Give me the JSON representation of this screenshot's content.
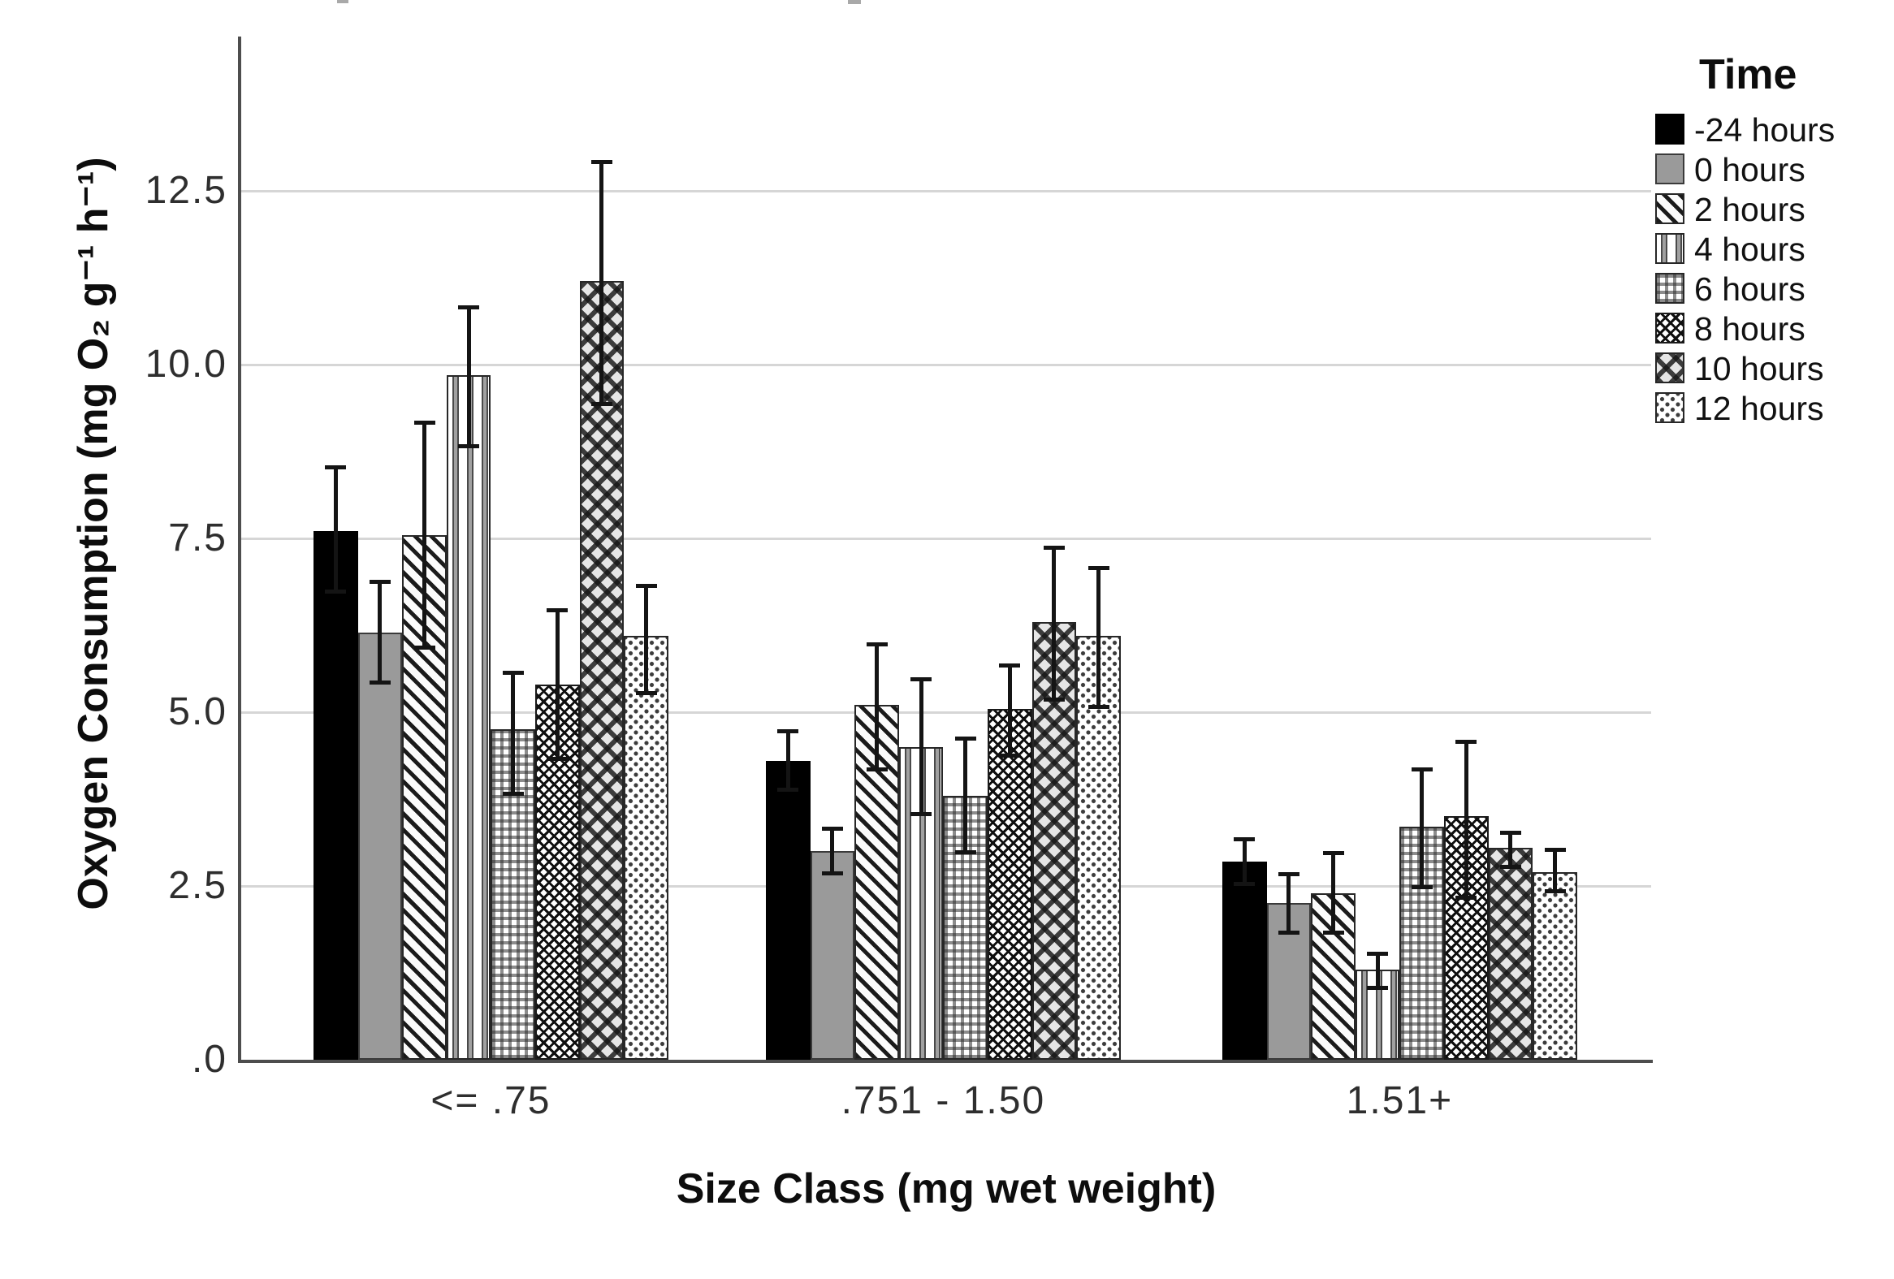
{
  "figure": {
    "background": "#ffffff"
  },
  "chart_data": {
    "type": "bar",
    "title": "",
    "xlabel": "Size Class (mg wet weight)",
    "ylabel": "Oxygen Consumption (mg O₂ g⁻¹ h⁻¹)",
    "categories": [
      "<= .75",
      ".751 - 1.50",
      "1.51+"
    ],
    "ylim": [
      0,
      14.72
    ],
    "grid": "horizontal light-gray lines at labeled ticks only",
    "y_ticks": [
      {
        "value": 12.5,
        "label": "12.5"
      },
      {
        "value": 10.0,
        "label": "10.0"
      },
      {
        "value": 7.5,
        "label": "7.5"
      },
      {
        "value": 5.0,
        "label": "5.0"
      },
      {
        "value": 2.5,
        "label": "2.5"
      },
      {
        "value": 0,
        "label": ".0"
      }
    ],
    "legend": {
      "title": "Time",
      "position": "top-right outside plot"
    },
    "error_bars": "black whiskers with end caps overlaid on bar centers",
    "series": [
      {
        "name": "-24 hours",
        "pattern": "solid-black",
        "values": [
          7.6,
          4.3,
          2.85
        ],
        "err_low": [
          6.7,
          3.85,
          2.5
        ],
        "err_high": [
          8.55,
          4.75,
          3.2
        ]
      },
      {
        "name": "0 hours",
        "pattern": "solid-gray",
        "values": [
          6.15,
          3.0,
          2.25
        ],
        "err_low": [
          5.4,
          2.65,
          1.8
        ],
        "err_high": [
          6.9,
          3.35,
          2.7
        ]
      },
      {
        "name": "2 hours",
        "pattern": "diagonal-stripes",
        "values": [
          7.55,
          5.1,
          2.4
        ],
        "err_low": [
          5.9,
          4.15,
          1.8
        ],
        "err_high": [
          9.2,
          6.0,
          3.0
        ]
      },
      {
        "name": "4 hours",
        "pattern": "vertical-stripes",
        "values": [
          9.85,
          4.5,
          1.3
        ],
        "err_low": [
          8.8,
          3.5,
          1.0
        ],
        "err_high": [
          10.85,
          5.5,
          1.55
        ]
      },
      {
        "name": "6 hours",
        "pattern": "grid-check",
        "values": [
          4.75,
          3.8,
          3.35
        ],
        "err_low": [
          3.8,
          2.95,
          2.45
        ],
        "err_high": [
          5.6,
          4.65,
          4.2
        ]
      },
      {
        "name": "8 hours",
        "pattern": "diamond-crosshatch",
        "values": [
          5.4,
          5.05,
          3.5
        ],
        "err_low": [
          4.3,
          4.35,
          2.3
        ],
        "err_high": [
          6.5,
          5.7,
          4.6
        ]
      },
      {
        "name": "10 hours",
        "pattern": "plus-lattice",
        "values": [
          11.2,
          6.3,
          3.05
        ],
        "err_low": [
          9.4,
          5.15,
          2.75
        ],
        "err_high": [
          12.95,
          7.4,
          3.3
        ]
      },
      {
        "name": "12 hours",
        "pattern": "dotted",
        "values": [
          6.1,
          6.1,
          2.7
        ],
        "err_low": [
          5.25,
          5.05,
          2.4
        ],
        "err_high": [
          6.85,
          7.1,
          3.05
        ]
      }
    ]
  },
  "colors": {
    "background": "#ffffff",
    "axis_line": "#4d4d4d",
    "gridline": "#d6d6d6",
    "tick_text": "#2e2e2e",
    "title_text": "#0d0d0d",
    "bar_gray": "#9a9a9a",
    "bar_black": "#000000",
    "error_bar": "#141414"
  }
}
